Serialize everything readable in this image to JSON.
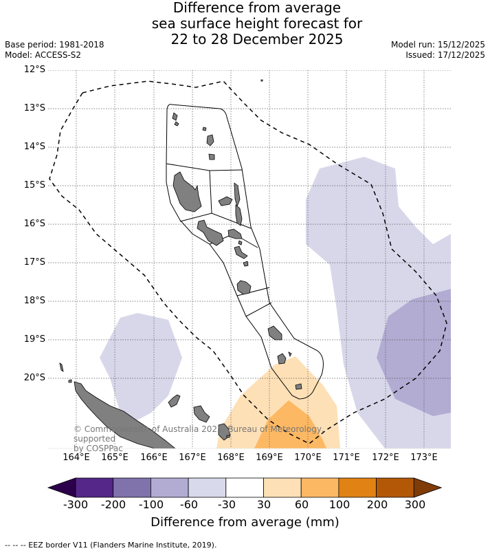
{
  "title": {
    "line1": "Difference from average",
    "line2": "sea surface height forecast for",
    "line3": "22 to 28 December 2025"
  },
  "meta": {
    "base_period": "Base period: 1981-2018",
    "model": "Model: ACCESS-S2",
    "model_run": "Model run: 15/12/2025",
    "issued": "Issued: 17/12/2025"
  },
  "axes": {
    "lat_labels": [
      "12°S",
      "13°S",
      "14°S",
      "15°S",
      "16°S",
      "17°S",
      "18°S",
      "19°S",
      "20°S"
    ],
    "lon_labels": [
      "164°E",
      "165°E",
      "166°E",
      "167°E",
      "168°E",
      "169°E",
      "170°E",
      "171°E",
      "172°E",
      "173°E"
    ]
  },
  "map": {
    "land_color": "#808080",
    "anomaly_colors": {
      "-100_-60": "#b2abd2",
      "-60_-30": "#d8d7ea",
      "30_60": "#fee0b6",
      "60_100": "#fdb863"
    }
  },
  "copyright": {
    "line1": "© Commonwealth of Australia 2025, Bureau of Meteorology, supported",
    "line2": "by COSPPac"
  },
  "colorbar": {
    "colors": [
      "#2d004b",
      "#542788",
      "#8073ac",
      "#b2abd2",
      "#d8daeb",
      "#ffffff",
      "#fee0b6",
      "#fdb863",
      "#e08214",
      "#b35806",
      "#7f3b08"
    ],
    "ticks": [
      "-300",
      "-200",
      "-100",
      "-60",
      "-30",
      "30",
      "60",
      "100",
      "200",
      "300"
    ],
    "label": "Difference from average (mm)"
  },
  "footer": "--  --  -- EEZ border V11 (Flanders Marine Institute, 2019)."
}
